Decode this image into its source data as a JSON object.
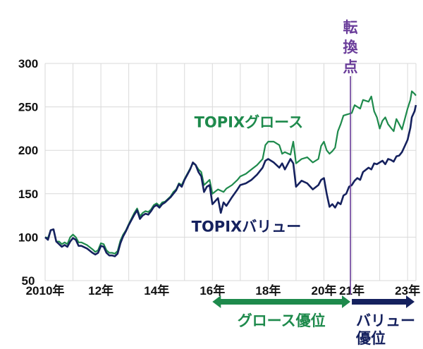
{
  "chart_data": {
    "type": "line",
    "title": "",
    "xlabel": "",
    "ylabel": "",
    "ylim": [
      50,
      300
    ],
    "yticks": [
      50,
      100,
      150,
      200,
      250,
      300
    ],
    "xlim": [
      2010,
      2023.3
    ],
    "xticks": [
      {
        "x": 2010,
        "label": "2010年"
      },
      {
        "x": 2012,
        "label": "12年"
      },
      {
        "x": 2014,
        "label": "14年"
      },
      {
        "x": 2016,
        "label": "16年"
      },
      {
        "x": 2018,
        "label": "18年"
      },
      {
        "x": 2020,
        "label": "20年"
      },
      {
        "x": 2021,
        "label": "21年"
      },
      {
        "x": 2023,
        "label": "23年"
      }
    ],
    "grid": true,
    "series": [
      {
        "name": "TOPIXグロース",
        "color": "#1e8a4c",
        "points": [
          [
            2010.0,
            100
          ],
          [
            2010.1,
            99
          ],
          [
            2010.2,
            108
          ],
          [
            2010.3,
            109
          ],
          [
            2010.4,
            95
          ],
          [
            2010.5,
            95
          ],
          [
            2010.6,
            92
          ],
          [
            2010.7,
            94
          ],
          [
            2010.8,
            92
          ],
          [
            2010.9,
            100
          ],
          [
            2011.0,
            103
          ],
          [
            2011.1,
            100
          ],
          [
            2011.2,
            94
          ],
          [
            2011.3,
            94
          ],
          [
            2011.5,
            91
          ],
          [
            2011.7,
            86
          ],
          [
            2011.8,
            83
          ],
          [
            2011.9,
            85
          ],
          [
            2012.0,
            93
          ],
          [
            2012.1,
            92
          ],
          [
            2012.2,
            85
          ],
          [
            2012.3,
            82
          ],
          [
            2012.4,
            82
          ],
          [
            2012.5,
            81
          ],
          [
            2012.6,
            84
          ],
          [
            2012.7,
            96
          ],
          [
            2012.8,
            103
          ],
          [
            2012.9,
            108
          ],
          [
            2013.0,
            115
          ],
          [
            2013.2,
            128
          ],
          [
            2013.3,
            133
          ],
          [
            2013.4,
            124
          ],
          [
            2013.5,
            128
          ],
          [
            2013.6,
            130
          ],
          [
            2013.7,
            129
          ],
          [
            2013.8,
            132
          ],
          [
            2013.9,
            137
          ],
          [
            2014.0,
            139
          ],
          [
            2014.1,
            136
          ],
          [
            2014.2,
            140
          ],
          [
            2014.3,
            141
          ],
          [
            2014.5,
            147
          ],
          [
            2014.6,
            152
          ],
          [
            2014.7,
            155
          ],
          [
            2014.8,
            162
          ],
          [
            2014.9,
            160
          ],
          [
            2015.0,
            167
          ],
          [
            2015.1,
            173
          ],
          [
            2015.2,
            179
          ],
          [
            2015.3,
            185
          ],
          [
            2015.4,
            183
          ],
          [
            2015.5,
            178
          ],
          [
            2015.6,
            175
          ],
          [
            2015.7,
            160
          ],
          [
            2015.8,
            163
          ],
          [
            2015.9,
            166
          ],
          [
            2016.0,
            150
          ],
          [
            2016.2,
            155
          ],
          [
            2016.4,
            152
          ],
          [
            2016.5,
            156
          ],
          [
            2016.7,
            160
          ],
          [
            2016.9,
            166
          ],
          [
            2017.0,
            170
          ],
          [
            2017.2,
            173
          ],
          [
            2017.4,
            178
          ],
          [
            2017.6,
            183
          ],
          [
            2017.8,
            190
          ],
          [
            2017.9,
            206
          ],
          [
            2018.0,
            210
          ],
          [
            2018.2,
            210
          ],
          [
            2018.4,
            206
          ],
          [
            2018.5,
            196
          ],
          [
            2018.6,
            198
          ],
          [
            2018.8,
            195
          ],
          [
            2018.9,
            210
          ],
          [
            2019.0,
            185
          ],
          [
            2019.2,
            190
          ],
          [
            2019.4,
            192
          ],
          [
            2019.6,
            186
          ],
          [
            2019.8,
            190
          ],
          [
            2019.9,
            205
          ],
          [
            2020.0,
            210
          ],
          [
            2020.1,
            200
          ],
          [
            2020.2,
            196
          ],
          [
            2020.3,
            199
          ],
          [
            2020.4,
            203
          ],
          [
            2020.5,
            222
          ],
          [
            2020.6,
            230
          ],
          [
            2020.7,
            240
          ],
          [
            2020.8,
            241
          ],
          [
            2020.9,
            242
          ],
          [
            2021.0,
            243
          ],
          [
            2021.1,
            252
          ],
          [
            2021.2,
            250
          ],
          [
            2021.3,
            248
          ],
          [
            2021.4,
            258
          ],
          [
            2021.6,
            256
          ],
          [
            2021.7,
            262
          ],
          [
            2021.8,
            245
          ],
          [
            2021.9,
            238
          ],
          [
            2022.0,
            225
          ],
          [
            2022.1,
            234
          ],
          [
            2022.2,
            238
          ],
          [
            2022.3,
            230
          ],
          [
            2022.4,
            226
          ],
          [
            2022.5,
            222
          ],
          [
            2022.6,
            236
          ],
          [
            2022.7,
            230
          ],
          [
            2022.8,
            224
          ],
          [
            2022.9,
            236
          ],
          [
            2023.0,
            248
          ],
          [
            2023.1,
            258
          ],
          [
            2023.15,
            268
          ],
          [
            2023.25,
            265
          ],
          [
            2023.3,
            263
          ]
        ]
      },
      {
        "name": "TOPIXバリュー",
        "color": "#15215e",
        "points": [
          [
            2010.0,
            100
          ],
          [
            2010.1,
            97
          ],
          [
            2010.2,
            108
          ],
          [
            2010.3,
            109
          ],
          [
            2010.4,
            95
          ],
          [
            2010.5,
            92
          ],
          [
            2010.6,
            89
          ],
          [
            2010.7,
            91
          ],
          [
            2010.8,
            89
          ],
          [
            2010.9,
            95
          ],
          [
            2011.0,
            99
          ],
          [
            2011.1,
            97
          ],
          [
            2011.2,
            90
          ],
          [
            2011.3,
            90
          ],
          [
            2011.5,
            87
          ],
          [
            2011.7,
            82
          ],
          [
            2011.8,
            80
          ],
          [
            2011.9,
            82
          ],
          [
            2012.0,
            90
          ],
          [
            2012.1,
            89
          ],
          [
            2012.2,
            82
          ],
          [
            2012.3,
            79
          ],
          [
            2012.4,
            79
          ],
          [
            2012.5,
            78
          ],
          [
            2012.6,
            81
          ],
          [
            2012.7,
            93
          ],
          [
            2012.8,
            101
          ],
          [
            2012.9,
            107
          ],
          [
            2013.0,
            114
          ],
          [
            2013.2,
            126
          ],
          [
            2013.3,
            131
          ],
          [
            2013.4,
            121
          ],
          [
            2013.5,
            125
          ],
          [
            2013.6,
            127
          ],
          [
            2013.7,
            126
          ],
          [
            2013.8,
            130
          ],
          [
            2013.9,
            135
          ],
          [
            2014.0,
            137
          ],
          [
            2014.1,
            134
          ],
          [
            2014.2,
            138
          ],
          [
            2014.3,
            140
          ],
          [
            2014.5,
            146
          ],
          [
            2014.6,
            150
          ],
          [
            2014.7,
            154
          ],
          [
            2014.8,
            161
          ],
          [
            2014.9,
            158
          ],
          [
            2015.0,
            166
          ],
          [
            2015.1,
            172
          ],
          [
            2015.2,
            178
          ],
          [
            2015.3,
            186
          ],
          [
            2015.4,
            183
          ],
          [
            2015.5,
            175
          ],
          [
            2015.6,
            170
          ],
          [
            2015.7,
            152
          ],
          [
            2015.8,
            158
          ],
          [
            2015.9,
            160
          ],
          [
            2016.0,
            138
          ],
          [
            2016.2,
            145
          ],
          [
            2016.3,
            128
          ],
          [
            2016.4,
            140
          ],
          [
            2016.5,
            136
          ],
          [
            2016.7,
            146
          ],
          [
            2016.9,
            155
          ],
          [
            2017.0,
            160
          ],
          [
            2017.2,
            162
          ],
          [
            2017.4,
            166
          ],
          [
            2017.6,
            172
          ],
          [
            2017.8,
            180
          ],
          [
            2017.9,
            188
          ],
          [
            2018.0,
            190
          ],
          [
            2018.2,
            186
          ],
          [
            2018.4,
            180
          ],
          [
            2018.5,
            185
          ],
          [
            2018.6,
            178
          ],
          [
            2018.8,
            190
          ],
          [
            2018.9,
            185
          ],
          [
            2019.0,
            158
          ],
          [
            2019.2,
            165
          ],
          [
            2019.4,
            162
          ],
          [
            2019.6,
            155
          ],
          [
            2019.8,
            160
          ],
          [
            2019.9,
            166
          ],
          [
            2020.0,
            168
          ],
          [
            2020.1,
            150
          ],
          [
            2020.2,
            135
          ],
          [
            2020.3,
            138
          ],
          [
            2020.4,
            134
          ],
          [
            2020.5,
            140
          ],
          [
            2020.6,
            138
          ],
          [
            2020.7,
            148
          ],
          [
            2020.8,
            150
          ],
          [
            2020.9,
            158
          ],
          [
            2021.0,
            160
          ],
          [
            2021.1,
            165
          ],
          [
            2021.2,
            168
          ],
          [
            2021.3,
            166
          ],
          [
            2021.4,
            175
          ],
          [
            2021.6,
            180
          ],
          [
            2021.7,
            178
          ],
          [
            2021.8,
            185
          ],
          [
            2021.9,
            184
          ],
          [
            2022.0,
            186
          ],
          [
            2022.1,
            188
          ],
          [
            2022.2,
            184
          ],
          [
            2022.3,
            190
          ],
          [
            2022.4,
            189
          ],
          [
            2022.5,
            187
          ],
          [
            2022.6,
            193
          ],
          [
            2022.7,
            194
          ],
          [
            2022.8,
            198
          ],
          [
            2022.9,
            205
          ],
          [
            2023.0,
            212
          ],
          [
            2023.1,
            226
          ],
          [
            2023.15,
            238
          ],
          [
            2023.25,
            245
          ],
          [
            2023.3,
            252
          ]
        ]
      }
    ],
    "series_labels": [
      {
        "text": "TOPIXグロース",
        "x": 2015.35,
        "y": 233
      },
      {
        "text": "TOPIXバリュー",
        "x": 2015.25,
        "y": 113
      }
    ],
    "turning_point": {
      "x": 2020.95,
      "label_lines": [
        "転",
        "換",
        "点"
      ],
      "color": "#6a3d9a"
    },
    "periods": [
      {
        "label": "グロース優位",
        "from": 2016,
        "to": 2020.95,
        "color": "#1e8a4c"
      },
      {
        "label_lines": [
          "バリュー",
          "優位"
        ],
        "from": 2020.95,
        "to": 2023.3,
        "color": "#15215e"
      }
    ]
  }
}
